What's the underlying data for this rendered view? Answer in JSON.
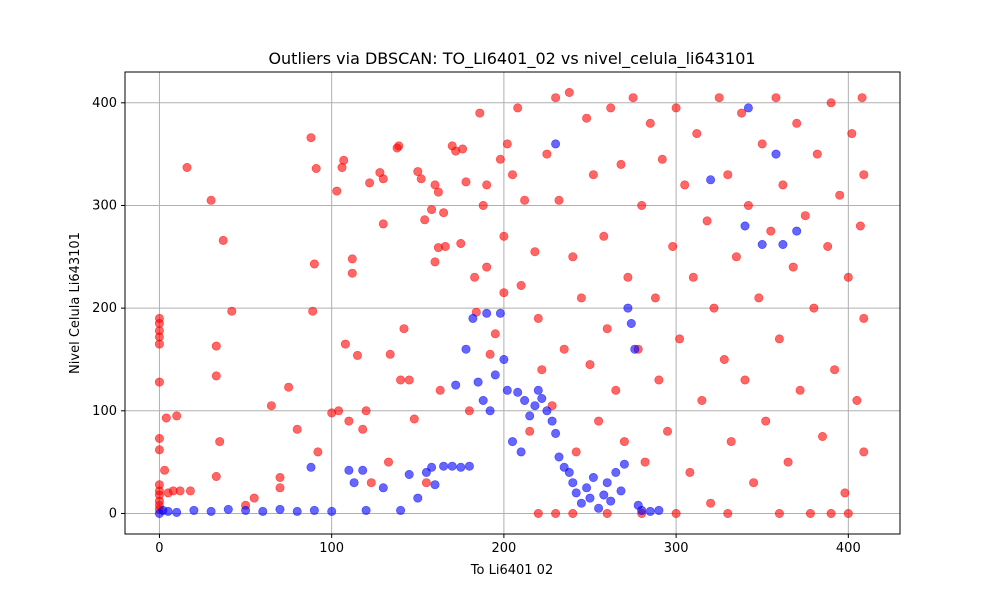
{
  "chart_data": {
    "type": "scatter",
    "title": "Outliers via DBSCAN: TO_LI6401_02 vs nivel_celula_li643101",
    "xlabel": "To Li6401 02",
    "ylabel": "Nivel Celula Li643101",
    "xlim": [
      -20,
      430
    ],
    "ylim": [
      -20,
      430
    ],
    "xticks": [
      0,
      100,
      200,
      300,
      400
    ],
    "yticks": [
      0,
      100,
      200,
      300,
      400
    ],
    "grid": true,
    "series": [
      {
        "color": "#ff0000",
        "alpha": 0.6,
        "points": [
          [
            0,
            190
          ],
          [
            0,
            185
          ],
          [
            0,
            178
          ],
          [
            0,
            172
          ],
          [
            0,
            165
          ],
          [
            0,
            128
          ],
          [
            0,
            73
          ],
          [
            0,
            62
          ],
          [
            0,
            28
          ],
          [
            0,
            22
          ],
          [
            0,
            18
          ],
          [
            0,
            12
          ],
          [
            0,
            8
          ],
          [
            0,
            4
          ],
          [
            3,
            42
          ],
          [
            4,
            93
          ],
          [
            5,
            20
          ],
          [
            8,
            22
          ],
          [
            10,
            95
          ],
          [
            12,
            22
          ],
          [
            16,
            337
          ],
          [
            18,
            22
          ],
          [
            30,
            305
          ],
          [
            33,
            163
          ],
          [
            33,
            134
          ],
          [
            33,
            36
          ],
          [
            35,
            70
          ],
          [
            37,
            266
          ],
          [
            42,
            197
          ],
          [
            50,
            8
          ],
          [
            55,
            15
          ],
          [
            65,
            105
          ],
          [
            70,
            35
          ],
          [
            70,
            25
          ],
          [
            75,
            123
          ],
          [
            80,
            82
          ],
          [
            88,
            366
          ],
          [
            89,
            197
          ],
          [
            90,
            243
          ],
          [
            91,
            336
          ],
          [
            92,
            60
          ],
          [
            100,
            98
          ],
          [
            103,
            314
          ],
          [
            104,
            100
          ],
          [
            106,
            337
          ],
          [
            107,
            344
          ],
          [
            108,
            165
          ],
          [
            110,
            90
          ],
          [
            112,
            248
          ],
          [
            112,
            234
          ],
          [
            115,
            154
          ],
          [
            118,
            82
          ],
          [
            120,
            100
          ],
          [
            122,
            322
          ],
          [
            123,
            30
          ],
          [
            128,
            332
          ],
          [
            130,
            326
          ],
          [
            130,
            282
          ],
          [
            133,
            50
          ],
          [
            134,
            155
          ],
          [
            138,
            356
          ],
          [
            139,
            358
          ],
          [
            140,
            130
          ],
          [
            142,
            180
          ],
          [
            145,
            130
          ],
          [
            148,
            92
          ],
          [
            150,
            333
          ],
          [
            152,
            326
          ],
          [
            154,
            286
          ],
          [
            155,
            30
          ],
          [
            158,
            296
          ],
          [
            160,
            245
          ],
          [
            160,
            320
          ],
          [
            162,
            259
          ],
          [
            162,
            313
          ],
          [
            163,
            120
          ],
          [
            165,
            293
          ],
          [
            166,
            260
          ],
          [
            170,
            358
          ],
          [
            172,
            353
          ],
          [
            175,
            263
          ],
          [
            176,
            355
          ],
          [
            178,
            323
          ],
          [
            180,
            100
          ],
          [
            183,
            230
          ],
          [
            184,
            196
          ],
          [
            186,
            390
          ],
          [
            188,
            300
          ],
          [
            190,
            240
          ],
          [
            190,
            320
          ],
          [
            192,
            155
          ],
          [
            195,
            175
          ],
          [
            198,
            345
          ],
          [
            200,
            215
          ],
          [
            200,
            270
          ],
          [
            202,
            360
          ],
          [
            205,
            330
          ],
          [
            208,
            395
          ],
          [
            210,
            222
          ],
          [
            212,
            305
          ],
          [
            215,
            80
          ],
          [
            218,
            255
          ],
          [
            220,
            190
          ],
          [
            222,
            140
          ],
          [
            225,
            350
          ],
          [
            228,
            105
          ],
          [
            230,
            405
          ],
          [
            232,
            305
          ],
          [
            235,
            160
          ],
          [
            238,
            410
          ],
          [
            240,
            250
          ],
          [
            242,
            60
          ],
          [
            245,
            210
          ],
          [
            248,
            385
          ],
          [
            250,
            145
          ],
          [
            252,
            330
          ],
          [
            255,
            90
          ],
          [
            258,
            270
          ],
          [
            260,
            180
          ],
          [
            262,
            395
          ],
          [
            265,
            120
          ],
          [
            268,
            340
          ],
          [
            270,
            70
          ],
          [
            272,
            230
          ],
          [
            275,
            405
          ],
          [
            278,
            160
          ],
          [
            280,
            300
          ],
          [
            282,
            50
          ],
          [
            285,
            380
          ],
          [
            288,
            210
          ],
          [
            290,
            130
          ],
          [
            292,
            345
          ],
          [
            295,
            80
          ],
          [
            298,
            260
          ],
          [
            300,
            395
          ],
          [
            302,
            170
          ],
          [
            305,
            320
          ],
          [
            308,
            40
          ],
          [
            310,
            230
          ],
          [
            312,
            370
          ],
          [
            315,
            110
          ],
          [
            318,
            285
          ],
          [
            320,
            10
          ],
          [
            322,
            200
          ],
          [
            325,
            405
          ],
          [
            328,
            150
          ],
          [
            330,
            330
          ],
          [
            332,
            70
          ],
          [
            335,
            250
          ],
          [
            338,
            390
          ],
          [
            340,
            130
          ],
          [
            342,
            300
          ],
          [
            345,
            30
          ],
          [
            348,
            210
          ],
          [
            350,
            360
          ],
          [
            352,
            90
          ],
          [
            355,
            275
          ],
          [
            358,
            405
          ],
          [
            360,
            170
          ],
          [
            362,
            320
          ],
          [
            365,
            50
          ],
          [
            368,
            240
          ],
          [
            370,
            380
          ],
          [
            372,
            120
          ],
          [
            375,
            290
          ],
          [
            378,
            0
          ],
          [
            380,
            200
          ],
          [
            382,
            350
          ],
          [
            385,
            75
          ],
          [
            388,
            260
          ],
          [
            390,
            400
          ],
          [
            392,
            140
          ],
          [
            395,
            310
          ],
          [
            398,
            20
          ],
          [
            400,
            230
          ],
          [
            402,
            370
          ],
          [
            405,
            110
          ],
          [
            407,
            280
          ],
          [
            408,
            405
          ],
          [
            409,
            60
          ],
          [
            409,
            190
          ],
          [
            409,
            330
          ],
          [
            400,
            0
          ],
          [
            390,
            0
          ],
          [
            360,
            0
          ],
          [
            330,
            0
          ],
          [
            300,
            0
          ],
          [
            280,
            0
          ],
          [
            260,
            0
          ],
          [
            240,
            0
          ],
          [
            230,
            0
          ],
          [
            220,
            0
          ]
        ]
      },
      {
        "color": "#0000ff",
        "alpha": 0.6,
        "points": [
          [
            0,
            0
          ],
          [
            2,
            3
          ],
          [
            5,
            2
          ],
          [
            10,
            1
          ],
          [
            20,
            3
          ],
          [
            30,
            2
          ],
          [
            40,
            4
          ],
          [
            50,
            3
          ],
          [
            60,
            2
          ],
          [
            70,
            4
          ],
          [
            80,
            2
          ],
          [
            88,
            45
          ],
          [
            90,
            3
          ],
          [
            100,
            2
          ],
          [
            110,
            42
          ],
          [
            113,
            30
          ],
          [
            118,
            42
          ],
          [
            120,
            3
          ],
          [
            130,
            25
          ],
          [
            140,
            3
          ],
          [
            145,
            38
          ],
          [
            150,
            15
          ],
          [
            155,
            40
          ],
          [
            158,
            45
          ],
          [
            160,
            28
          ],
          [
            165,
            46
          ],
          [
            170,
            46
          ],
          [
            172,
            125
          ],
          [
            175,
            45
          ],
          [
            178,
            160
          ],
          [
            180,
            46
          ],
          [
            182,
            190
          ],
          [
            185,
            128
          ],
          [
            188,
            110
          ],
          [
            190,
            195
          ],
          [
            192,
            100
          ],
          [
            195,
            135
          ],
          [
            198,
            195
          ],
          [
            200,
            150
          ],
          [
            202,
            120
          ],
          [
            205,
            70
          ],
          [
            208,
            118
          ],
          [
            210,
            60
          ],
          [
            212,
            110
          ],
          [
            215,
            95
          ],
          [
            218,
            105
          ],
          [
            220,
            120
          ],
          [
            222,
            112
          ],
          [
            225,
            100
          ],
          [
            228,
            90
          ],
          [
            230,
            78
          ],
          [
            232,
            55
          ],
          [
            235,
            45
          ],
          [
            238,
            40
          ],
          [
            240,
            30
          ],
          [
            242,
            20
          ],
          [
            245,
            10
          ],
          [
            248,
            25
          ],
          [
            250,
            15
          ],
          [
            252,
            35
          ],
          [
            255,
            5
          ],
          [
            258,
            18
          ],
          [
            260,
            30
          ],
          [
            262,
            12
          ],
          [
            265,
            40
          ],
          [
            268,
            22
          ],
          [
            270,
            48
          ],
          [
            272,
            200
          ],
          [
            274,
            185
          ],
          [
            276,
            160
          ],
          [
            278,
            8
          ],
          [
            280,
            3
          ],
          [
            285,
            2
          ],
          [
            290,
            3
          ],
          [
            230,
            360
          ],
          [
            320,
            325
          ],
          [
            340,
            280
          ],
          [
            350,
            262
          ],
          [
            362,
            262
          ],
          [
            370,
            275
          ],
          [
            358,
            350
          ],
          [
            342,
            395
          ]
        ]
      }
    ]
  }
}
